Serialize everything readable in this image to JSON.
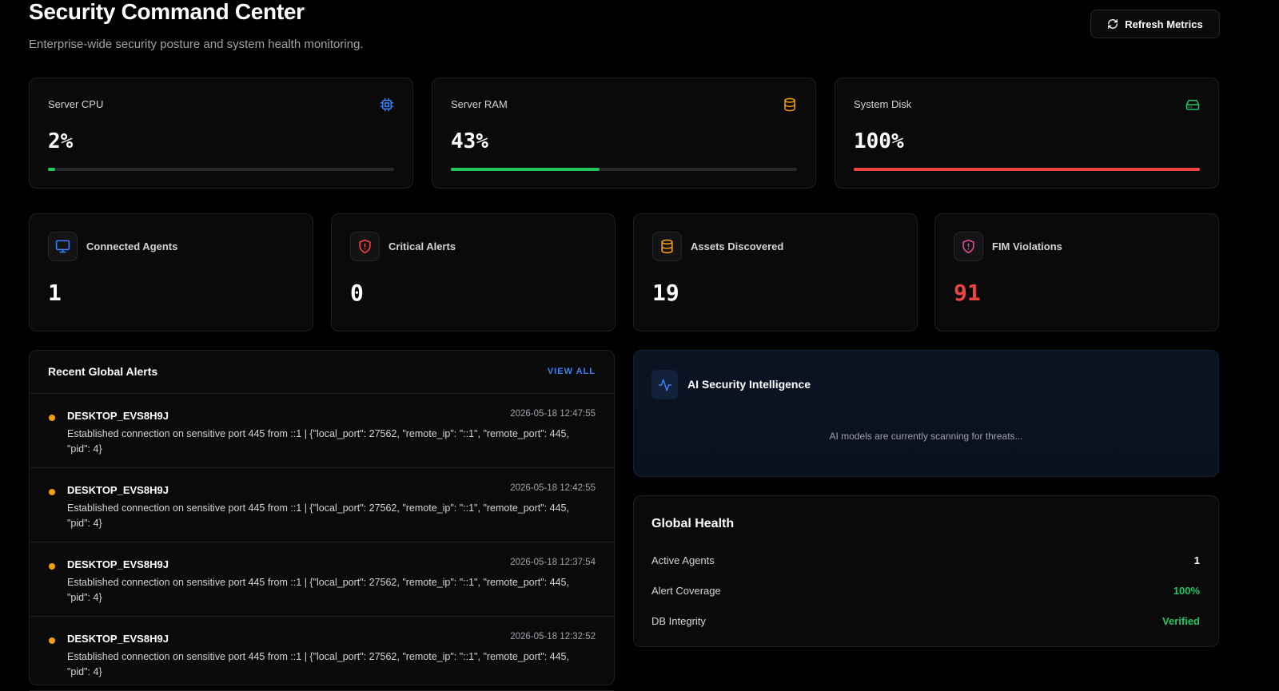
{
  "header": {
    "title": "Security Command Center",
    "subtitle": "Enterprise-wide security posture and system health monitoring.",
    "refresh_label": "Refresh Metrics"
  },
  "metrics": [
    {
      "label": "Server CPU",
      "value": "2%",
      "percent": 2,
      "color": "#22c55e",
      "icon": "cpu-icon",
      "icon_color": "#3b82f6"
    },
    {
      "label": "Server RAM",
      "value": "43%",
      "percent": 43,
      "color": "#22c55e",
      "icon": "database-icon",
      "icon_color": "#f59e0b"
    },
    {
      "label": "System Disk",
      "value": "100%",
      "percent": 100,
      "color": "#ef4444",
      "icon": "hard-drive-icon",
      "icon_color": "#22c55e"
    }
  ],
  "stats": [
    {
      "label": "Connected Agents",
      "value": "1",
      "icon": "monitor-icon",
      "icon_color": "#3b82f6",
      "value_color": "#ffffff"
    },
    {
      "label": "Critical Alerts",
      "value": "0",
      "icon": "shield-alert-icon",
      "icon_color": "#ef4444",
      "value_color": "#ffffff"
    },
    {
      "label": "Assets Discovered",
      "value": "19",
      "icon": "database-icon",
      "icon_color": "#f59e0b",
      "value_color": "#ffffff"
    },
    {
      "label": "FIM Violations",
      "value": "91",
      "icon": "shield-alert-icon",
      "icon_color": "#ec4899",
      "value_color": "#ef4444"
    }
  ],
  "alerts": {
    "title": "Recent Global Alerts",
    "view_all": "VIEW ALL",
    "items": [
      {
        "host": "DESKTOP_EVS8H9J",
        "time": "2026-05-18 12:47:55",
        "message": "Established connection on sensitive port 445 from ::1 | {\"local_port\": 27562, \"remote_ip\": \"::1\", \"remote_port\": 445, \"pid\": 4}"
      },
      {
        "host": "DESKTOP_EVS8H9J",
        "time": "2026-05-18 12:42:55",
        "message": "Established connection on sensitive port 445 from ::1 | {\"local_port\": 27562, \"remote_ip\": \"::1\", \"remote_port\": 445, \"pid\": 4}"
      },
      {
        "host": "DESKTOP_EVS8H9J",
        "time": "2026-05-18 12:37:54",
        "message": "Established connection on sensitive port 445 from ::1 | {\"local_port\": 27562, \"remote_ip\": \"::1\", \"remote_port\": 445, \"pid\": 4}"
      },
      {
        "host": "DESKTOP_EVS8H9J",
        "time": "2026-05-18 12:32:52",
        "message": "Established connection on sensitive port 445 from ::1 | {\"local_port\": 27562, \"remote_ip\": \"::1\", \"remote_port\": 445, \"pid\": 4}"
      }
    ]
  },
  "ai": {
    "title": "AI Security Intelligence",
    "status": "AI models are currently scanning for threats..."
  },
  "health": {
    "title": "Global Health",
    "rows": [
      {
        "label": "Active Agents",
        "value": "1",
        "color": "#ffffff"
      },
      {
        "label": "Alert Coverage",
        "value": "100%",
        "color": "#22c55e"
      },
      {
        "label": "DB Integrity",
        "value": "Verified",
        "color": "#22c55e"
      }
    ]
  }
}
